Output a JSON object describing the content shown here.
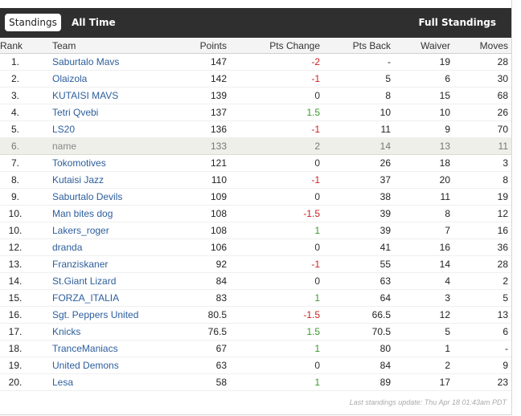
{
  "tabs": {
    "standings": "Standings",
    "all_time": "All Time",
    "full_standings": "Full Standings"
  },
  "columns": [
    "Rank",
    "Team",
    "Points",
    "Pts Change",
    "Pts Back",
    "Waiver",
    "Moves"
  ],
  "rows": [
    {
      "rank": "1.",
      "team": "Saburtalo Mavs",
      "points": "147",
      "change": "-2",
      "back": "-",
      "waiver": "19",
      "moves": "28"
    },
    {
      "rank": "2.",
      "team": "Olaizola",
      "points": "142",
      "change": "-1",
      "back": "5",
      "waiver": "6",
      "moves": "30"
    },
    {
      "rank": "3.",
      "team": "KUTAISI MAVS",
      "points": "139",
      "change": "0",
      "back": "8",
      "waiver": "15",
      "moves": "68"
    },
    {
      "rank": "4.",
      "team": "Tetri Qvebi",
      "points": "137",
      "change": "1.5",
      "back": "10",
      "waiver": "10",
      "moves": "26"
    },
    {
      "rank": "5.",
      "team": "LS20",
      "points": "136",
      "change": "-1",
      "back": "11",
      "waiver": "9",
      "moves": "70"
    },
    {
      "rank": "6.",
      "team": "name",
      "points": "133",
      "change": "2",
      "back": "14",
      "waiver": "13",
      "moves": "11",
      "self": true
    },
    {
      "rank": "7.",
      "team": "Tokomotives",
      "points": "121",
      "change": "0",
      "back": "26",
      "waiver": "18",
      "moves": "3"
    },
    {
      "rank": "8.",
      "team": "Kutaisi Jazz",
      "points": "110",
      "change": "-1",
      "back": "37",
      "waiver": "20",
      "moves": "8"
    },
    {
      "rank": "9.",
      "team": "Saburtalo Devils",
      "points": "109",
      "change": "0",
      "back": "38",
      "waiver": "11",
      "moves": "19"
    },
    {
      "rank": "10.",
      "team": "Man bites dog",
      "points": "108",
      "change": "-1.5",
      "back": "39",
      "waiver": "8",
      "moves": "12"
    },
    {
      "rank": "10.",
      "team": "Lakers_roger",
      "points": "108",
      "change": "1",
      "back": "39",
      "waiver": "7",
      "moves": "16"
    },
    {
      "rank": "12.",
      "team": "dranda",
      "points": "106",
      "change": "0",
      "back": "41",
      "waiver": "16",
      "moves": "36"
    },
    {
      "rank": "13.",
      "team": "Franziskaner",
      "points": "92",
      "change": "-1",
      "back": "55",
      "waiver": "14",
      "moves": "28"
    },
    {
      "rank": "14.",
      "team": "St.Giant Lizard",
      "points": "84",
      "change": "0",
      "back": "63",
      "waiver": "4",
      "moves": "2"
    },
    {
      "rank": "15.",
      "team": "FORZA_ITALIA",
      "points": "83",
      "change": "1",
      "back": "64",
      "waiver": "3",
      "moves": "5"
    },
    {
      "rank": "16.",
      "team": "Sgt. Peppers United",
      "points": "80.5",
      "change": "-1.5",
      "back": "66.5",
      "waiver": "12",
      "moves": "13"
    },
    {
      "rank": "17.",
      "team": "Knicks",
      "points": "76.5",
      "change": "1.5",
      "back": "70.5",
      "waiver": "5",
      "moves": "6"
    },
    {
      "rank": "18.",
      "team": "TranceManiacs",
      "points": "67",
      "change": "1",
      "back": "80",
      "waiver": "1",
      "moves": "-"
    },
    {
      "rank": "19.",
      "team": "United Demons",
      "points": "63",
      "change": "0",
      "back": "84",
      "waiver": "2",
      "moves": "9"
    },
    {
      "rank": "20.",
      "team": "Lesa",
      "points": "58",
      "change": "1",
      "back": "89",
      "waiver": "17",
      "moves": "23"
    }
  ],
  "footer": "Last standings update: Thu Apr 18 01:43am PDT",
  "colors": {
    "header_bg": "#2f2f2f",
    "link": "#2c5e9c",
    "positive": "#3a9a2c",
    "negative": "#cc2222"
  }
}
